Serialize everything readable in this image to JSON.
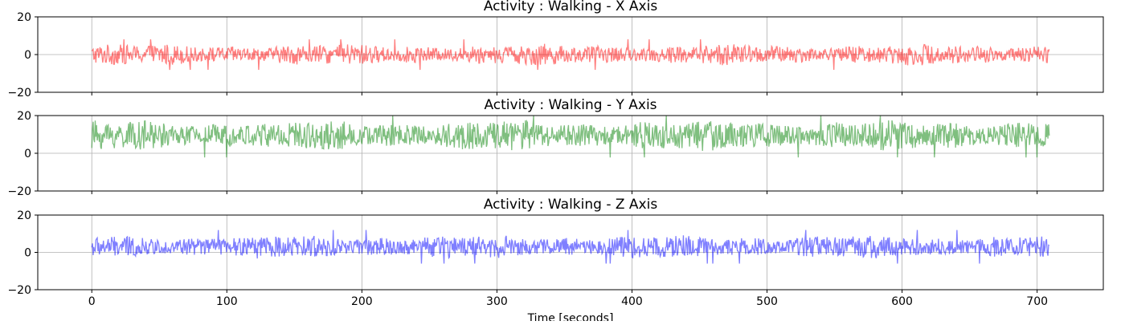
{
  "chart_data": {
    "type": "area",
    "xlabel": "Time [seconds]",
    "x_range": [
      0,
      709
    ],
    "xlim": [
      -40,
      749
    ],
    "x_ticks": [
      0,
      100,
      200,
      300,
      400,
      500,
      600,
      700
    ],
    "grid": true,
    "shared_x_axis": true,
    "panels": [
      {
        "title": "Activity : Walking - X Axis",
        "color": "#ff0000",
        "alpha": 0.5,
        "ylim": [
          -20,
          20
        ],
        "y_ticks": [
          -20,
          0,
          20
        ],
        "center": 0,
        "amplitude": 4.5,
        "max": 10.5,
        "min": -9.5
      },
      {
        "title": "Activity : Walking - Y Axis",
        "color": "#008000",
        "alpha": 0.5,
        "ylim": [
          -20,
          20
        ],
        "y_ticks": [
          -20,
          0,
          20
        ],
        "center": 9.5,
        "amplitude": 6.5,
        "max": 20,
        "min": -3
      },
      {
        "title": "Activity : Walking - Z Axis",
        "color": "#0000ff",
        "alpha": 0.5,
        "ylim": [
          -20,
          20
        ],
        "y_ticks": [
          -20,
          0,
          20
        ],
        "center": 3,
        "amplitude": 5,
        "max": 12.5,
        "min": -7
      }
    ]
  }
}
